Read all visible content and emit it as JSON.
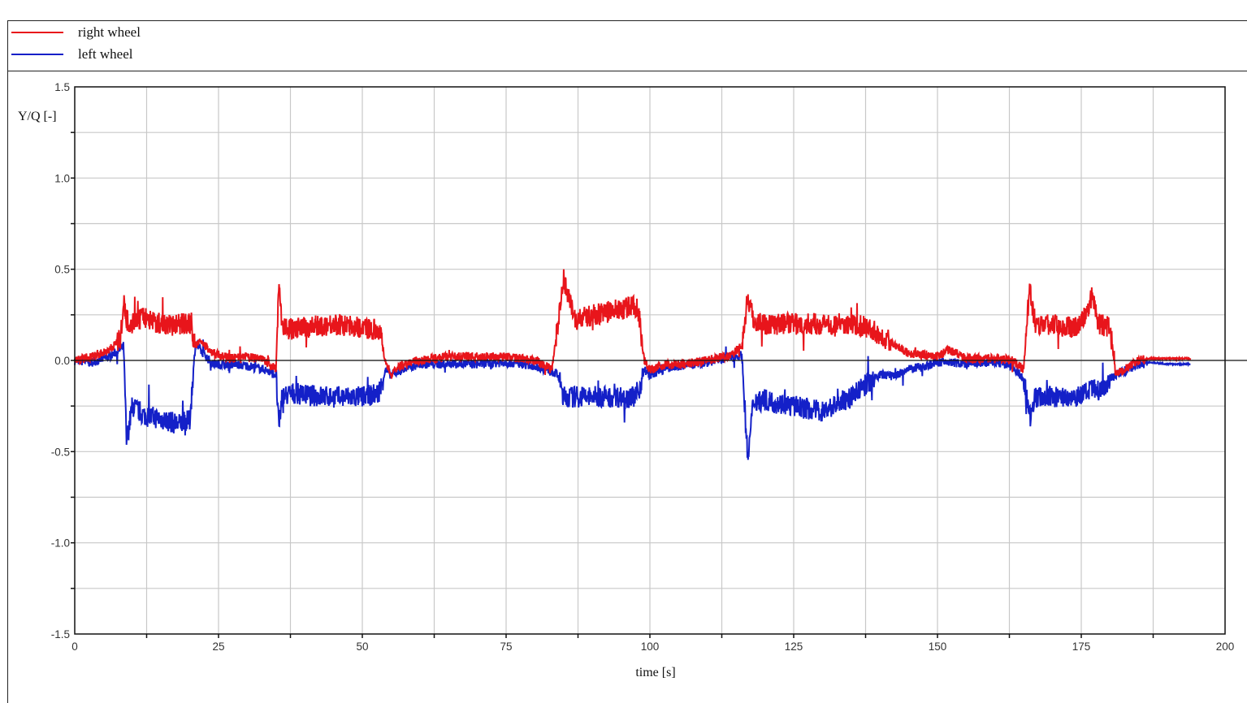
{
  "legend": {
    "items": [
      {
        "label": "right wheel",
        "color": "#e8151b"
      },
      {
        "label": "left wheel",
        "color": "#1420c8"
      }
    ]
  },
  "axes": {
    "ylabel": "Y/Q [-]",
    "xlabel": "time [s]",
    "y_ticks": [
      "1.5",
      "1.0",
      "0.5",
      "0.0",
      "-0.5",
      "-1.0",
      "-1.5"
    ],
    "x_ticks": [
      "0",
      "25",
      "50",
      "75",
      "100",
      "125",
      "150",
      "175",
      "200"
    ]
  },
  "chart_data": {
    "type": "line",
    "title": "",
    "xlabel": "time [s]",
    "ylabel": "Y/Q [-]",
    "xlim": [
      0,
      200
    ],
    "ylim": [
      -1.5,
      1.5
    ],
    "x_ticks": [
      0,
      25,
      50,
      75,
      100,
      125,
      150,
      175,
      200
    ],
    "y_ticks": [
      -1.5,
      -1.0,
      -0.5,
      0.0,
      0.5,
      1.0,
      1.5
    ],
    "grid": true,
    "legend_position": "top-left (separate legend box above plot)",
    "reference_line": 0.0,
    "series": [
      {
        "name": "right wheel",
        "color": "#e8151b",
        "x": [
          0,
          3,
          6,
          8,
          8.5,
          9,
          10,
          12,
          15,
          18,
          20,
          21,
          22,
          24,
          27,
          30,
          33,
          35,
          35.5,
          36,
          38,
          40,
          45,
          50,
          53,
          54,
          55,
          57,
          60,
          65,
          70,
          75,
          78,
          80,
          83,
          84,
          85,
          87,
          90,
          95,
          97,
          98,
          99,
          100,
          103,
          106,
          110,
          114,
          116,
          117,
          118,
          120,
          125,
          130,
          135,
          138,
          140,
          143,
          145,
          148,
          150,
          152,
          155,
          160,
          163,
          165,
          166,
          167,
          170,
          173,
          175,
          177,
          178,
          180,
          181,
          183,
          185,
          187,
          190,
          194
        ],
        "y": [
          0.0,
          0.02,
          0.06,
          0.12,
          0.33,
          0.22,
          0.2,
          0.24,
          0.2,
          0.2,
          0.2,
          0.08,
          0.1,
          0.04,
          0.01,
          0.02,
          0.0,
          -0.05,
          0.47,
          0.18,
          0.17,
          0.18,
          0.2,
          0.18,
          0.17,
          0.0,
          -0.08,
          -0.02,
          0.0,
          0.02,
          0.02,
          0.02,
          0.01,
          0.0,
          -0.05,
          0.2,
          0.45,
          0.22,
          0.25,
          0.28,
          0.3,
          0.28,
          0.0,
          -0.05,
          -0.02,
          -0.02,
          0.0,
          0.03,
          0.08,
          0.35,
          0.22,
          0.2,
          0.2,
          0.2,
          0.2,
          0.18,
          0.14,
          0.08,
          0.04,
          0.03,
          0.02,
          0.06,
          0.01,
          0.01,
          0.0,
          -0.05,
          0.4,
          0.2,
          0.2,
          0.18,
          0.2,
          0.36,
          0.2,
          0.18,
          -0.08,
          -0.04,
          0.0,
          0.01,
          0.01,
          0.01
        ]
      },
      {
        "name": "left wheel",
        "color": "#1420c8",
        "x": [
          0,
          3,
          6,
          8,
          8.5,
          9,
          10,
          12,
          15,
          18,
          20,
          21,
          22,
          24,
          27,
          30,
          33,
          35,
          35.5,
          36,
          38,
          40,
          45,
          50,
          53,
          54,
          55,
          57,
          60,
          65,
          70,
          75,
          78,
          80,
          83,
          84,
          85,
          87,
          90,
          95,
          97,
          98,
          99,
          100,
          103,
          106,
          110,
          114,
          116,
          117,
          118,
          120,
          125,
          130,
          135,
          138,
          140,
          143,
          145,
          148,
          150,
          152,
          155,
          160,
          163,
          165,
          166,
          167,
          170,
          173,
          175,
          177,
          178,
          180,
          181,
          183,
          185,
          187,
          190,
          194
        ],
        "y": [
          0.0,
          -0.01,
          0.02,
          0.06,
          0.08,
          -0.45,
          -0.25,
          -0.3,
          -0.32,
          -0.35,
          -0.33,
          0.1,
          0.05,
          -0.02,
          -0.02,
          -0.03,
          -0.05,
          -0.08,
          -0.38,
          -0.2,
          -0.18,
          -0.19,
          -0.2,
          -0.2,
          -0.18,
          -0.05,
          -0.08,
          -0.05,
          -0.02,
          -0.02,
          -0.02,
          -0.01,
          -0.02,
          -0.03,
          -0.06,
          -0.08,
          -0.2,
          -0.2,
          -0.2,
          -0.2,
          -0.2,
          -0.18,
          -0.05,
          -0.08,
          -0.04,
          -0.03,
          -0.01,
          0.02,
          0.03,
          -0.55,
          -0.22,
          -0.22,
          -0.25,
          -0.28,
          -0.2,
          -0.12,
          -0.08,
          -0.08,
          -0.05,
          -0.03,
          -0.01,
          -0.01,
          -0.02,
          -0.01,
          -0.03,
          -0.1,
          -0.3,
          -0.2,
          -0.2,
          -0.2,
          -0.19,
          -0.16,
          -0.17,
          -0.1,
          -0.08,
          -0.05,
          -0.02,
          -0.01,
          -0.02,
          -0.02
        ]
      }
    ]
  }
}
